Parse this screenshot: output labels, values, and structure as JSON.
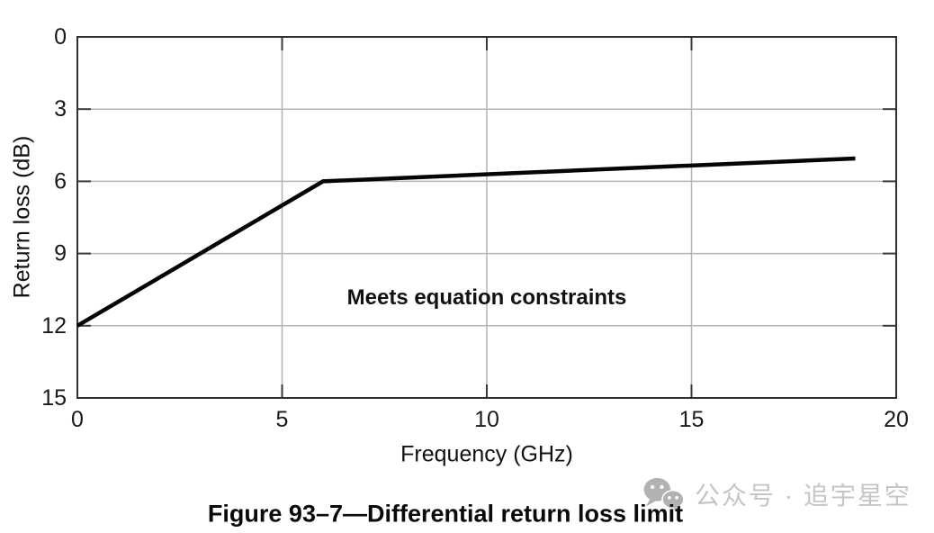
{
  "figure": {
    "caption": "Figure 93–7—Differential return loss limit"
  },
  "watermark": {
    "icon": "wechat-icon",
    "text": "公众号 · 追宇星空",
    "text_color": "#c5c5c5",
    "icon_color": "#b2b2b2"
  },
  "chart_data": {
    "type": "line",
    "title": "",
    "xlabel": "Frequency (GHz)",
    "ylabel": "Return loss (dB)",
    "xlim": [
      0,
      20
    ],
    "ylim": [
      0,
      15
    ],
    "y_axis_inverted": true,
    "grid": "on",
    "xticks": [
      0,
      5,
      10,
      15,
      20
    ],
    "yticks": [
      0,
      3,
      6,
      9,
      12,
      15
    ],
    "grid_x": [
      5,
      10,
      15
    ],
    "grid_y": [
      3,
      6,
      9,
      12
    ],
    "annotation": {
      "text": "Meets equation constraints",
      "x": 10,
      "y": 10.9
    },
    "series": [
      {
        "name": "Differential return loss limit",
        "points": [
          [
            0,
            12
          ],
          [
            6,
            6
          ],
          [
            19,
            5.05
          ]
        ],
        "color": "#050505",
        "width": 4.5
      }
    ],
    "colors": {
      "frame": "#303030",
      "gridline": "#b3b3b3",
      "tick": "#3a3a3a",
      "tick_label": "#1a1a1a"
    }
  }
}
